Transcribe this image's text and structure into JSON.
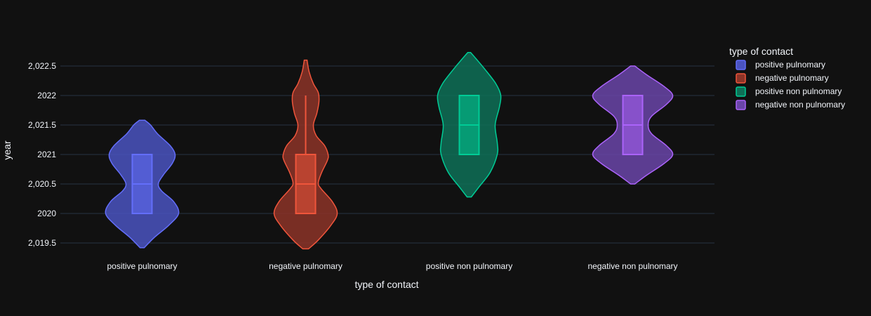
{
  "chart_data": {
    "type": "violin",
    "xlabel": "type of contact",
    "ylabel": "year",
    "categories": [
      "positive pulnomary",
      "negative pulnomary",
      "positive non pulnomary",
      "negative non pulnomary"
    ],
    "yticks": [
      {
        "value": 2019.5,
        "label": "2,019.5"
      },
      {
        "value": 2020,
        "label": "2020"
      },
      {
        "value": 2020.5,
        "label": "2,020.5"
      },
      {
        "value": 2021,
        "label": "2021"
      },
      {
        "value": 2021.5,
        "label": "2,021.5"
      },
      {
        "value": 2022,
        "label": "2022"
      },
      {
        "value": 2022.5,
        "label": "2,022.5"
      }
    ],
    "ylim": [
      2019.35,
      2022.9
    ],
    "grid": true,
    "legend": {
      "title": "type of contact",
      "position": "top-right"
    },
    "series": [
      {
        "name": "positive pulnomary",
        "color": "#636efa",
        "fill": "#4a53c0",
        "box": {
          "q1": 2020,
          "median": 2020.5,
          "q3": 2021,
          "min": 2020,
          "max": 2021
        },
        "profile": [
          [
            2019.42,
            3
          ],
          [
            2019.6,
            18
          ],
          [
            2019.8,
            38
          ],
          [
            2020,
            52
          ],
          [
            2020.2,
            45
          ],
          [
            2020.38,
            28
          ],
          [
            2020.5,
            23
          ],
          [
            2020.65,
            30
          ],
          [
            2020.85,
            43
          ],
          [
            2021,
            47
          ],
          [
            2021.15,
            40
          ],
          [
            2021.35,
            22
          ],
          [
            2021.5,
            12
          ],
          [
            2021.58,
            4
          ]
        ]
      },
      {
        "name": "negative pulnomary",
        "color": "#ef553b",
        "fill": "#8c3428",
        "box": {
          "q1": 2020,
          "median": 2020.5,
          "q3": 2021,
          "min": 2020,
          "max": 2022
        },
        "profile": [
          [
            2019.4,
            4
          ],
          [
            2019.55,
            18
          ],
          [
            2019.8,
            36
          ],
          [
            2020,
            45
          ],
          [
            2020.2,
            38
          ],
          [
            2020.42,
            22
          ],
          [
            2020.52,
            18
          ],
          [
            2020.7,
            23
          ],
          [
            2020.9,
            31
          ],
          [
            2021,
            32
          ],
          [
            2021.15,
            27
          ],
          [
            2021.32,
            15
          ],
          [
            2021.5,
            11
          ],
          [
            2021.7,
            16
          ],
          [
            2021.9,
            19
          ],
          [
            2022.05,
            18
          ],
          [
            2022.2,
            11
          ],
          [
            2022.4,
            5
          ],
          [
            2022.6,
            2
          ]
        ]
      },
      {
        "name": "positive non pulnomary",
        "color": "#00cc96",
        "fill": "#0e7057",
        "box": {
          "q1": 2021,
          "median": 2021.5,
          "q3": 2022,
          "min": 2021,
          "max": 2022
        },
        "profile": [
          [
            2020.28,
            3
          ],
          [
            2020.45,
            14
          ],
          [
            2020.7,
            30
          ],
          [
            2021,
            40
          ],
          [
            2021.2,
            40
          ],
          [
            2021.5,
            37
          ],
          [
            2021.8,
            43
          ],
          [
            2022,
            45
          ],
          [
            2022.2,
            38
          ],
          [
            2022.45,
            22
          ],
          [
            2022.62,
            10
          ],
          [
            2022.73,
            2
          ]
        ]
      },
      {
        "name": "negative non pulnomary",
        "color": "#ab63fa",
        "fill": "#6a45a8",
        "box": {
          "q1": 2021,
          "median": 2021.5,
          "q3": 2022,
          "min": 2021,
          "max": 2022
        },
        "profile": [
          [
            2020.5,
            3
          ],
          [
            2020.65,
            20
          ],
          [
            2020.85,
            45
          ],
          [
            2021,
            57
          ],
          [
            2021.15,
            48
          ],
          [
            2021.35,
            27
          ],
          [
            2021.5,
            22
          ],
          [
            2021.65,
            27
          ],
          [
            2021.85,
            48
          ],
          [
            2022,
            57
          ],
          [
            2022.15,
            45
          ],
          [
            2022.35,
            20
          ],
          [
            2022.5,
            3
          ]
        ]
      }
    ]
  }
}
